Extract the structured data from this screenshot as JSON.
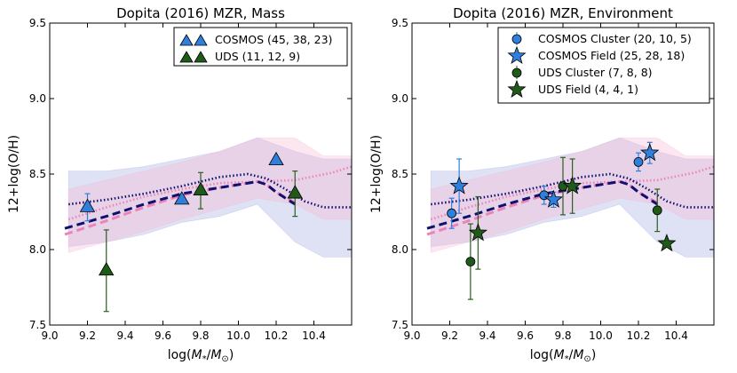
{
  "colors": {
    "cosmos": "#2f7fdc",
    "uds": "#1f5a19",
    "err_cosmos": "#2f7fdc",
    "err_uds": "#2b5e1f",
    "navy": "#10106e",
    "pink": "#ec83b9",
    "blue_band": "#9aa3de",
    "pink_band": "#f6b6d2"
  },
  "chart_data": [
    {
      "type": "scatter",
      "title": "Dopita (2016) MZR, Mass",
      "xlabel": "log(M*/M⊙)",
      "xlabel_main": "log(",
      "xlabel_var": "M",
      "xlabel_sub1": "*",
      "xlabel_slash": "/",
      "xlabel_var2": "M",
      "xlabel_sub2": "⊙",
      "xlabel_close": ")",
      "ylabel": "12+log(O/H)",
      "xlim": [
        9.0,
        10.6
      ],
      "ylim": [
        7.5,
        9.5
      ],
      "xticks": [
        "9.0",
        "9.2",
        "9.4",
        "9.6",
        "9.8",
        "10.0",
        "10.2",
        "10.4"
      ],
      "yticks": [
        "7.5",
        "8.0",
        "8.5",
        "9.0",
        "9.5"
      ],
      "legend_position": "top-right",
      "legend": [
        {
          "label": "COSMOS (45, 38, 23)",
          "marker": "triangle",
          "color": "cosmos",
          "double": true
        },
        {
          "label": "UDS (11, 12, 9)",
          "marker": "triangle",
          "color": "uds",
          "double": true
        }
      ],
      "series": [
        {
          "name": "COSMOS",
          "marker": "triangle",
          "color": "cosmos",
          "points": [
            {
              "x": 9.2,
              "y": 8.28,
              "err": 0.09
            },
            {
              "x": 9.7,
              "y": 8.33,
              "err": 0.0
            },
            {
              "x": 10.2,
              "y": 8.59,
              "err": 0.0
            }
          ]
        },
        {
          "name": "UDS",
          "marker": "triangle",
          "color": "uds",
          "points": [
            {
              "x": 9.3,
              "y": 7.86,
              "err": 0.27
            },
            {
              "x": 9.8,
              "y": 8.39,
              "err": 0.12
            },
            {
              "x": 10.3,
              "y": 8.37,
              "err": 0.15
            }
          ]
        }
      ]
    },
    {
      "type": "scatter",
      "title": "Dopita (2016) MZR, Environment",
      "xlabel": "log(M*/M⊙)",
      "xlabel_main": "log(",
      "xlabel_var": "M",
      "xlabel_sub1": "*",
      "xlabel_slash": "/",
      "xlabel_var2": "M",
      "xlabel_sub2": "⊙",
      "xlabel_close": ")",
      "ylabel": "12+log(O/H)",
      "xlim": [
        9.0,
        10.6
      ],
      "ylim": [
        7.5,
        9.5
      ],
      "xticks": [
        "9.0",
        "9.2",
        "9.4",
        "9.6",
        "9.8",
        "10.0",
        "10.2",
        "10.4"
      ],
      "yticks": [
        "7.5",
        "8.0",
        "8.5",
        "9.0",
        "9.5"
      ],
      "legend_position": "top-right",
      "legend": [
        {
          "label": "COSMOS Cluster (20, 10, 5)",
          "marker": "circle",
          "color": "cosmos"
        },
        {
          "label": "COSMOS Field (25, 28, 18)",
          "marker": "star",
          "color": "cosmos"
        },
        {
          "label": "UDS Cluster (7, 8, 8)",
          "marker": "circle",
          "color": "uds"
        },
        {
          "label": "UDS Field (4, 4, 1)",
          "marker": "star",
          "color": "uds"
        }
      ],
      "series": [
        {
          "name": "COSMOS Cluster",
          "marker": "circle",
          "color": "cosmos",
          "points": [
            {
              "x": 9.21,
              "y": 8.24,
              "err": 0.1
            },
            {
              "x": 9.7,
              "y": 8.36,
              "err": 0.06
            },
            {
              "x": 10.2,
              "y": 8.58,
              "err": 0.06
            }
          ]
        },
        {
          "name": "COSMOS Field",
          "marker": "star",
          "color": "cosmos",
          "points": [
            {
              "x": 9.25,
              "y": 8.42,
              "err": 0.18
            },
            {
              "x": 9.75,
              "y": 8.33,
              "err": 0.05
            },
            {
              "x": 10.26,
              "y": 8.64,
              "err": 0.07
            }
          ]
        },
        {
          "name": "UDS Cluster",
          "marker": "circle",
          "color": "uds",
          "points": [
            {
              "x": 9.31,
              "y": 7.92,
              "err": 0.25
            },
            {
              "x": 9.8,
              "y": 8.42,
              "err": 0.19
            },
            {
              "x": 10.3,
              "y": 8.26,
              "err": 0.14
            }
          ]
        },
        {
          "name": "UDS Field",
          "marker": "star",
          "color": "uds",
          "points": [
            {
              "x": 9.35,
              "y": 8.11,
              "err": 0.24
            },
            {
              "x": 9.85,
              "y": 8.42,
              "err": 0.18
            },
            {
              "x": 10.35,
              "y": 8.04,
              "err": 0.0
            }
          ]
        }
      ]
    }
  ],
  "model_curves": {
    "navy_dashed": {
      "x": [
        9.08,
        9.3,
        9.5,
        9.7,
        9.9,
        10.1,
        10.15,
        10.2,
        10.3
      ],
      "y": [
        8.14,
        8.22,
        8.3,
        8.37,
        8.41,
        8.45,
        8.43,
        8.38,
        8.3
      ]
    },
    "pink_dashed": {
      "x": [
        9.08,
        9.3,
        9.5,
        9.7,
        9.9,
        10.1,
        10.15,
        10.2,
        10.3
      ],
      "y": [
        8.1,
        8.19,
        8.28,
        8.36,
        8.41,
        8.45,
        8.43,
        8.38,
        8.31
      ]
    },
    "navy_dotted": {
      "x": [
        9.1,
        9.3,
        9.5,
        9.7,
        9.9,
        10.05,
        10.15,
        10.25,
        10.35,
        10.45,
        10.6
      ],
      "y": [
        8.3,
        8.33,
        8.37,
        8.42,
        8.48,
        8.5,
        8.47,
        8.4,
        8.32,
        8.28,
        8.28
      ]
    },
    "pink_dotted": {
      "x": [
        9.1,
        9.3,
        9.5,
        9.7,
        9.9,
        10.1,
        10.3,
        10.5,
        10.6
      ],
      "y": [
        8.2,
        8.28,
        8.35,
        8.4,
        8.44,
        8.45,
        8.46,
        8.51,
        8.55
      ]
    },
    "blue_band": {
      "x": [
        9.1,
        9.3,
        9.5,
        9.7,
        9.9,
        10.1,
        10.3,
        10.45,
        10.6
      ],
      "upper": [
        8.52,
        8.52,
        8.55,
        8.6,
        8.65,
        8.74,
        8.65,
        8.6,
        8.6
      ],
      "lower": [
        8.02,
        8.05,
        8.1,
        8.18,
        8.22,
        8.3,
        8.05,
        7.95,
        7.95
      ]
    },
    "pink_band": {
      "x": [
        9.1,
        9.3,
        9.5,
        9.7,
        9.9,
        10.1,
        10.3,
        10.45,
        10.6
      ],
      "upper": [
        8.4,
        8.46,
        8.52,
        8.58,
        8.65,
        8.74,
        8.74,
        8.62,
        8.62
      ],
      "lower": [
        7.98,
        8.05,
        8.12,
        8.2,
        8.27,
        8.34,
        8.3,
        8.2,
        8.2
      ]
    }
  }
}
